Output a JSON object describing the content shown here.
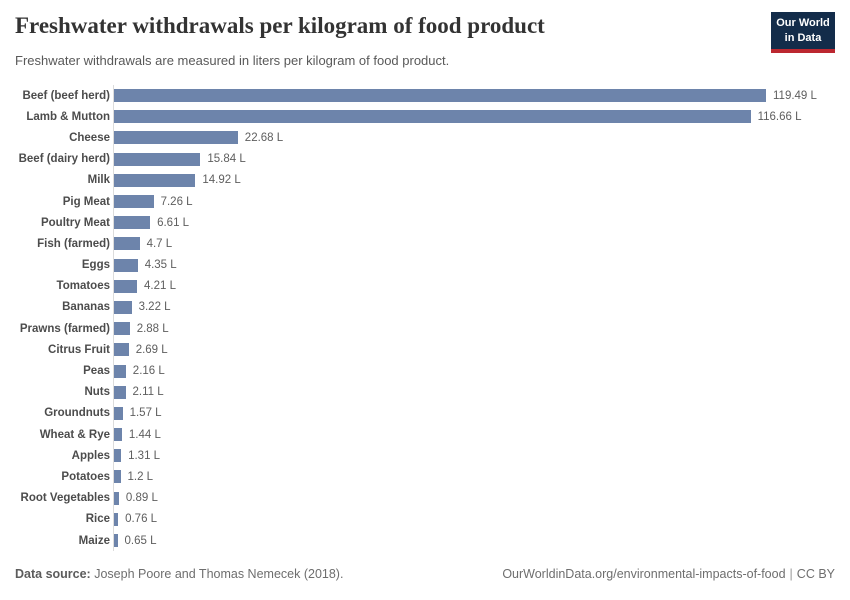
{
  "header": {
    "title": "Freshwater withdrawals per kilogram of food product",
    "subtitle": "Freshwater withdrawals are measured in liters per kilogram of food product.",
    "logo": {
      "line1": "Our World",
      "line2": "in Data"
    }
  },
  "chart_data": {
    "type": "bar",
    "orientation": "horizontal",
    "title": "Freshwater withdrawals per kilogram of food product",
    "unit": "liters per kilogram of food product",
    "categories": [
      "Beef (beef herd)",
      "Lamb & Mutton",
      "Cheese",
      "Beef (dairy herd)",
      "Milk",
      "Pig Meat",
      "Poultry Meat",
      "Fish (farmed)",
      "Eggs",
      "Tomatoes",
      "Bananas",
      "Prawns (farmed)",
      "Citrus Fruit",
      "Peas",
      "Nuts",
      "Groundnuts",
      "Wheat & Rye",
      "Apples",
      "Potatoes",
      "Root Vegetables",
      "Rice",
      "Maize"
    ],
    "values": [
      119.49,
      116.66,
      22.68,
      15.84,
      14.92,
      7.26,
      6.61,
      4.7,
      4.35,
      4.21,
      3.22,
      2.88,
      2.69,
      2.16,
      2.11,
      1.57,
      1.44,
      1.31,
      1.2,
      0.89,
      0.76,
      0.65
    ],
    "value_labels": [
      "119.49 L",
      "116.66 L",
      "22.68 L",
      "15.84 L",
      "14.92 L",
      "7.26 L",
      "6.61 L",
      "4.7 L",
      "4.35 L",
      "4.21 L",
      "3.22 L",
      "2.88 L",
      "2.69 L",
      "2.16 L",
      "2.11 L",
      "1.57 L",
      "1.44 L",
      "1.31 L",
      "1.2 L",
      "0.89 L",
      "0.76 L",
      "0.65 L"
    ],
    "xmax": 119.49,
    "grid": false,
    "legend": "none",
    "bar_color": "#6d84ab"
  },
  "footer": {
    "data_source_label": "Data source:",
    "data_source_text": "Joseph Poore and Thomas Nemecek (2018).",
    "citation_url": "OurWorldinData.org/environmental-impacts-of-food",
    "separator": "|",
    "license": "CC BY"
  },
  "colors": {
    "bar": "#6d84ab",
    "title": "#333333",
    "subtitle": "#595959",
    "logo_background": "#132c4a",
    "logo_accent": "#bc2730",
    "axis_line": "#dcdcdc"
  }
}
